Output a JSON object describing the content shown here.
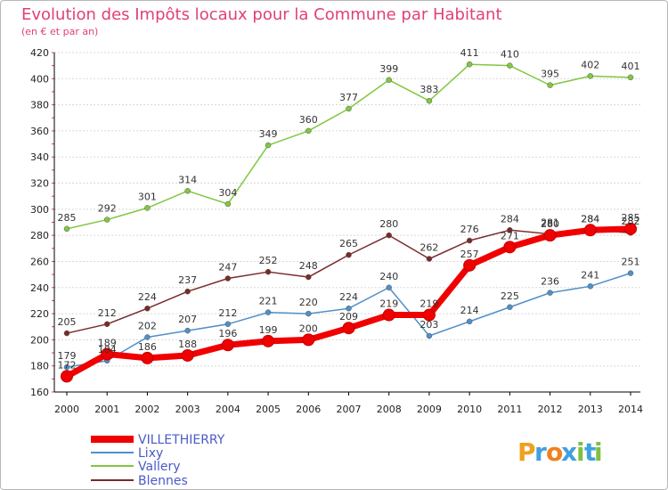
{
  "chart_data": {
    "type": "line",
    "title": "Evolution des Impôts locaux pour la Commune par Habitant",
    "subtitle": "(en € et par an)",
    "x": [
      2000,
      2001,
      2002,
      2003,
      2004,
      2005,
      2006,
      2007,
      2008,
      2009,
      2010,
      2011,
      2012,
      2013,
      2014
    ],
    "ylim": [
      160,
      420
    ],
    "yticks": [
      160,
      180,
      200,
      220,
      240,
      260,
      280,
      300,
      320,
      340,
      360,
      380,
      400,
      420
    ],
    "grid": "horizontal",
    "legend_position": "bottom-left",
    "series": [
      {
        "name": "Vallery",
        "color": "#80c840",
        "values": [
          285,
          292,
          301,
          314,
          304,
          349,
          360,
          377,
          399,
          383,
          411,
          410,
          395,
          402,
          401
        ]
      },
      {
        "name": "Blennes",
        "color": "#7a2a2a",
        "values": [
          205,
          212,
          224,
          237,
          247,
          252,
          248,
          265,
          280,
          262,
          276,
          284,
          281,
          284,
          282
        ]
      },
      {
        "name": "Lixy",
        "color": "#5090c8",
        "values": [
          179,
          184,
          202,
          207,
          212,
          221,
          220,
          224,
          240,
          203,
          214,
          225,
          236,
          241,
          251
        ]
      },
      {
        "name": "VILLETHIERRY",
        "color": "#f00000",
        "values": [
          172,
          189,
          186,
          188,
          196,
          199,
          200,
          209,
          219,
          219,
          257,
          271,
          280,
          284,
          285
        ]
      }
    ],
    "legend_order": [
      "VILLETHIERRY",
      "Lixy",
      "Vallery",
      "Blennes"
    ]
  },
  "logo": {
    "text": "Proxiti",
    "letters": [
      "P",
      "r",
      "o",
      "x",
      "i",
      "t",
      "i"
    ],
    "colors": [
      "#f0a020",
      "#40a0e0",
      "#f08020",
      "#40a0e0",
      "#80c040",
      "#40a0e0",
      "#80c040"
    ]
  }
}
